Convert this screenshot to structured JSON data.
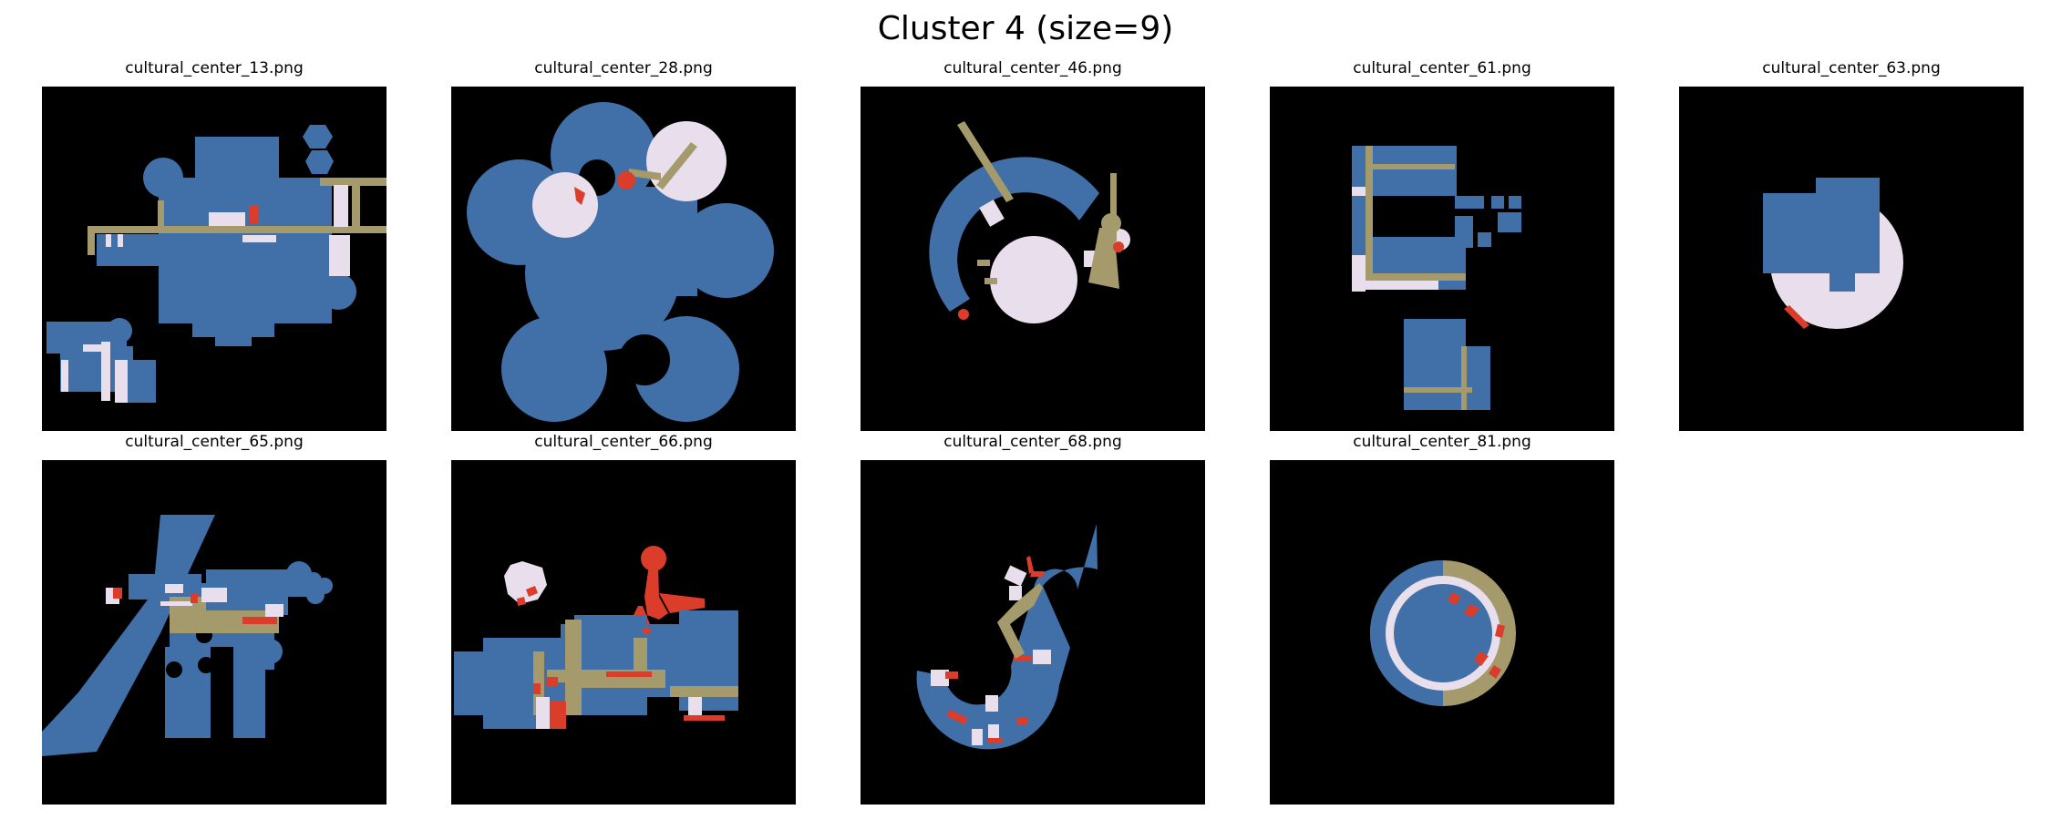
{
  "figure": {
    "title": "Cluster 4 (size=9)"
  },
  "colors": {
    "background": "#000000",
    "blue": "#4170a8",
    "tan": "#a59a6b",
    "lavender": "#e8deec",
    "red": "#dc3d2b"
  },
  "panels": [
    {
      "title": "cultural_center_13.png"
    },
    {
      "title": "cultural_center_28.png"
    },
    {
      "title": "cultural_center_46.png"
    },
    {
      "title": "cultural_center_61.png"
    },
    {
      "title": "cultural_center_63.png"
    },
    {
      "title": "cultural_center_65.png"
    },
    {
      "title": "cultural_center_66.png"
    },
    {
      "title": "cultural_center_68.png"
    },
    {
      "title": "cultural_center_81.png"
    }
  ]
}
